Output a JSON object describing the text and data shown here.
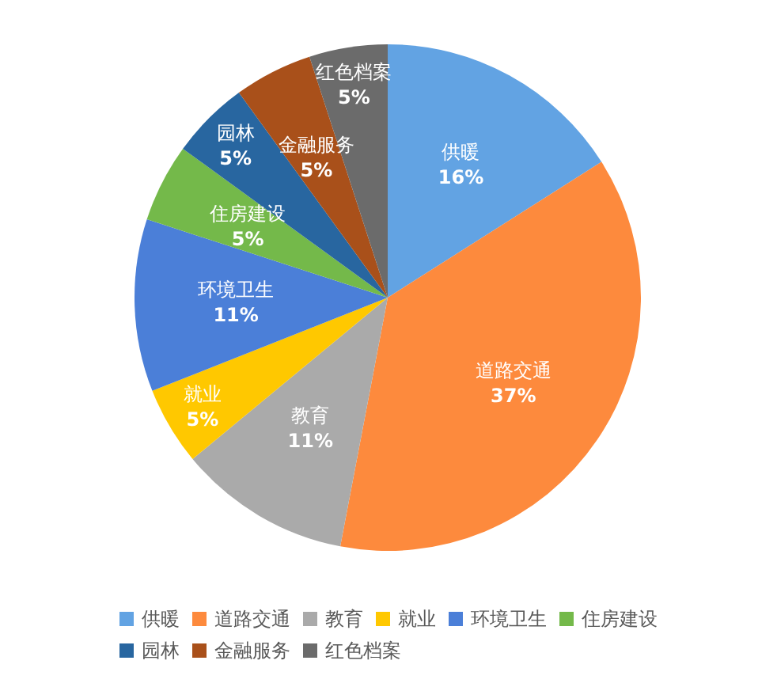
{
  "chart_data": {
    "type": "pie",
    "categories": [
      "供暖",
      "道路交通",
      "教育",
      "就业",
      "环境卫生",
      "住房建设",
      "园林",
      "金融服务",
      "红色档案"
    ],
    "values": [
      16,
      37,
      11,
      5,
      11,
      5,
      5,
      5,
      5
    ],
    "value_labels": [
      "16%",
      "37%",
      "11%",
      "5%",
      "11%",
      "5%",
      "5%",
      "5%",
      "5%"
    ],
    "colors": [
      "#62a3e3",
      "#fd8a3d",
      "#aaaaaa",
      "#ffc800",
      "#4b7fd8",
      "#74b94a",
      "#2866a0",
      "#a9501a",
      "#6b6b6b"
    ],
    "legend": "bottom"
  }
}
